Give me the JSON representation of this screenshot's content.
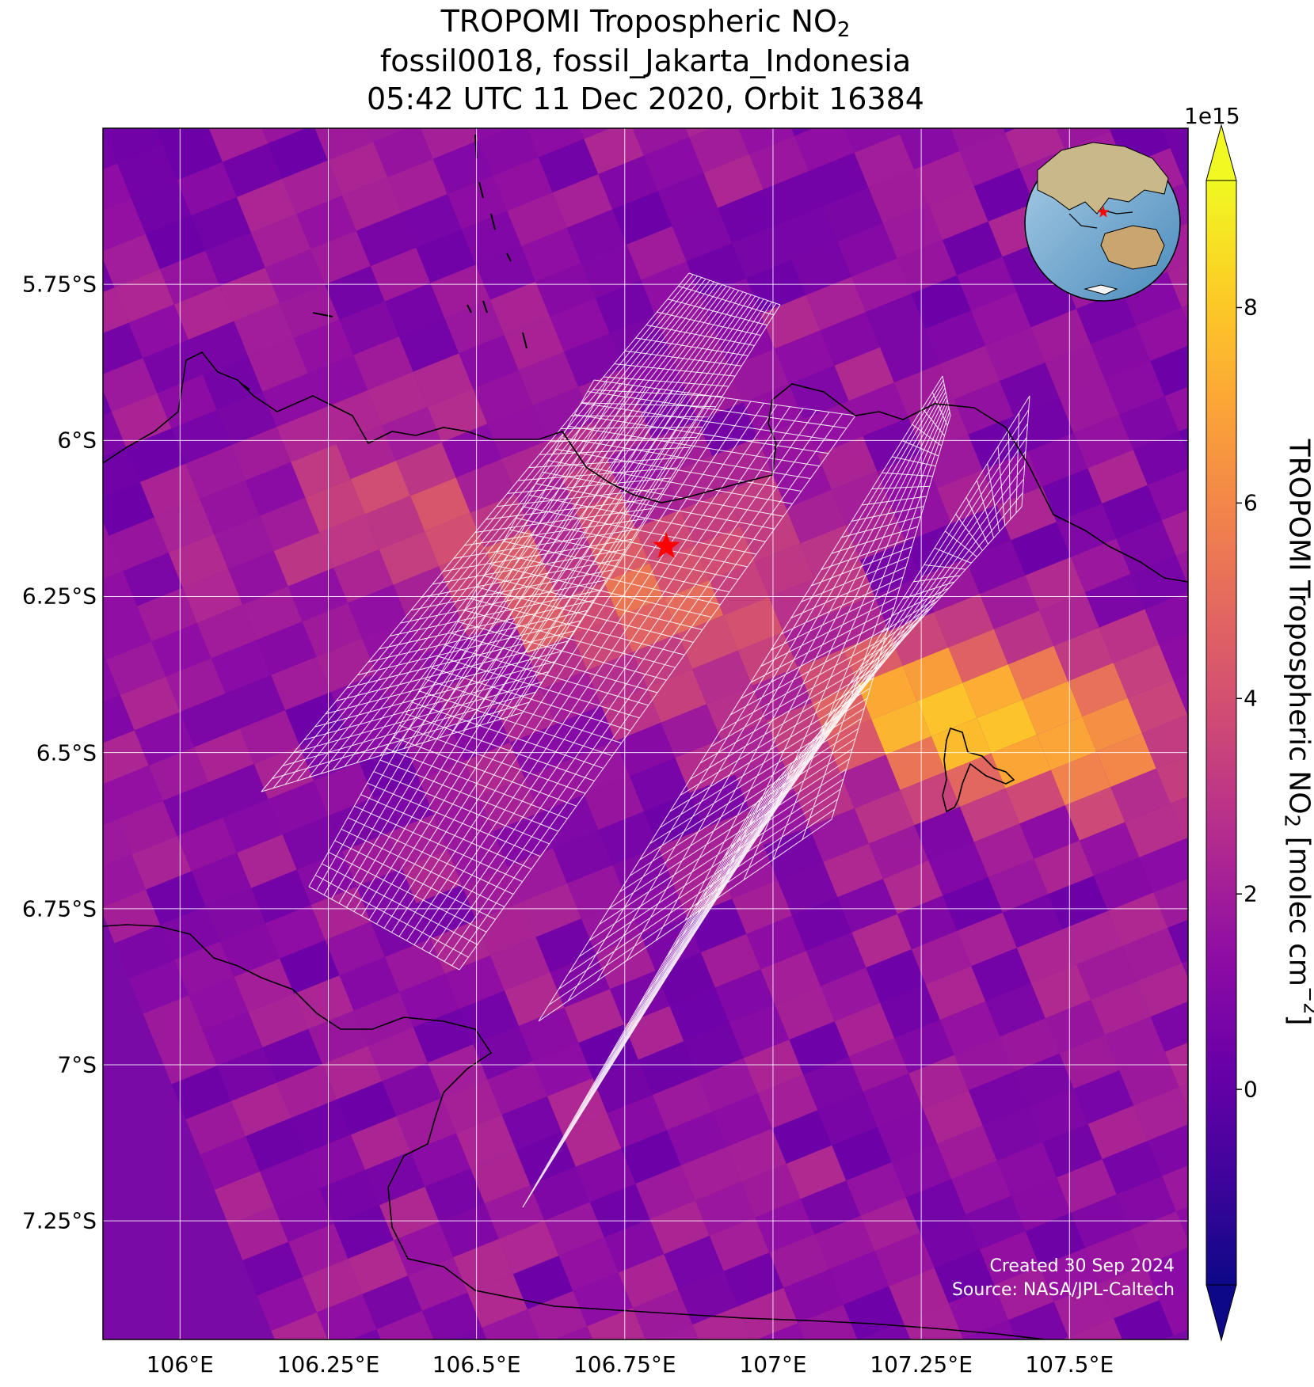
{
  "title": {
    "line1_prefix": "TROPOMI Tropospheric NO",
    "line1_sub": "2",
    "line2": "fossil0018, fossil_Jakarta_Indonesia",
    "line3": "05:42 UTC 11 Dec 2020, Orbit 16384"
  },
  "map": {
    "lon_range": [
      105.87,
      107.7
    ],
    "lat_range": [
      -7.44,
      -5.5
    ],
    "lat_ticks": [
      "5.75°S",
      "6°S",
      "6.25°S",
      "6.5°S",
      "6.75°S",
      "7°S",
      "7.25°S"
    ],
    "lat_tick_values": [
      -5.75,
      -6.0,
      -6.25,
      -6.5,
      -6.75,
      -7.0,
      -7.25
    ],
    "lon_ticks": [
      "106°E",
      "106.25°E",
      "106.5°E",
      "106.75°E",
      "107°E",
      "107.25°E",
      "107.5°E"
    ],
    "lon_tick_values": [
      106.0,
      106.25,
      106.5,
      106.75,
      107.0,
      107.25,
      107.5
    ],
    "target": {
      "name": "fossil_Jakarta_Indonesia",
      "lon": 106.82,
      "lat": -6.17,
      "marker_color": "#ff0000"
    },
    "gridlines": true
  },
  "colorbar": {
    "colormap": "plasma",
    "exponent_label": "1e15",
    "ticks": [
      "0",
      "2",
      "4",
      "6",
      "8"
    ],
    "tick_values": [
      0,
      2,
      4,
      6,
      8
    ],
    "range": [
      -2,
      9.3
    ],
    "label_prefix": "TROPOMI Tropospheric NO",
    "label_sub": "2",
    "label_units": " [molec cm",
    "label_sup": "−2",
    "label_close": "]"
  },
  "credits": {
    "created": "Created 30 Sep 2024",
    "source": "Source: NASA/JPL-Caltech"
  },
  "colors": {
    "grid": "#ffffff",
    "coastline": "#000000",
    "target_footprints": "#ffffff"
  }
}
